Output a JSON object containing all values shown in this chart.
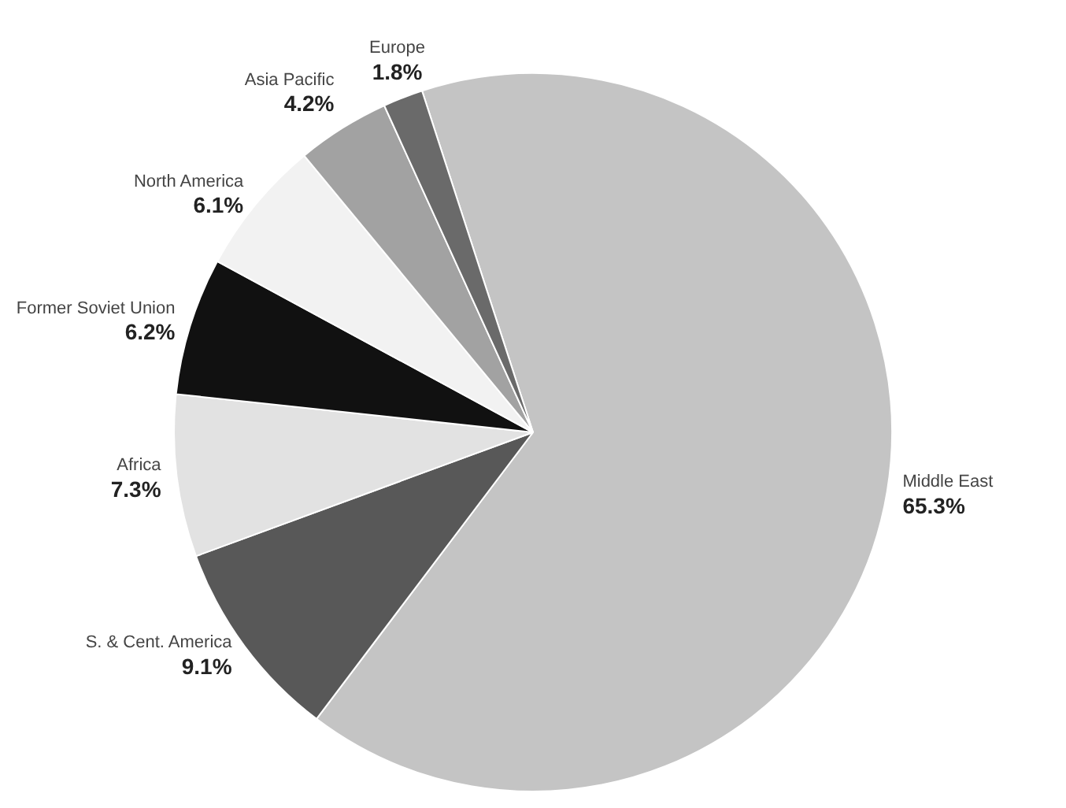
{
  "chart_data": {
    "type": "pie",
    "categories": [
      "Middle East",
      "S. & Cent. America",
      "Africa",
      "Former Soviet Union",
      "North America",
      "Asia Pacific",
      "Europe"
    ],
    "values": [
      65.3,
      9.1,
      7.3,
      6.2,
      6.1,
      4.2,
      1.8
    ],
    "value_labels": [
      "65.3%",
      "9.1%",
      "7.3%",
      "6.2%",
      "6.1%",
      "4.2%",
      "1.8%"
    ],
    "colors": [
      "#c4c4c4",
      "#585858",
      "#e2e2e2",
      "#111111",
      "#f2f2f2",
      "#a2a2a2",
      "#6a6a6a"
    ],
    "legend": false
  }
}
